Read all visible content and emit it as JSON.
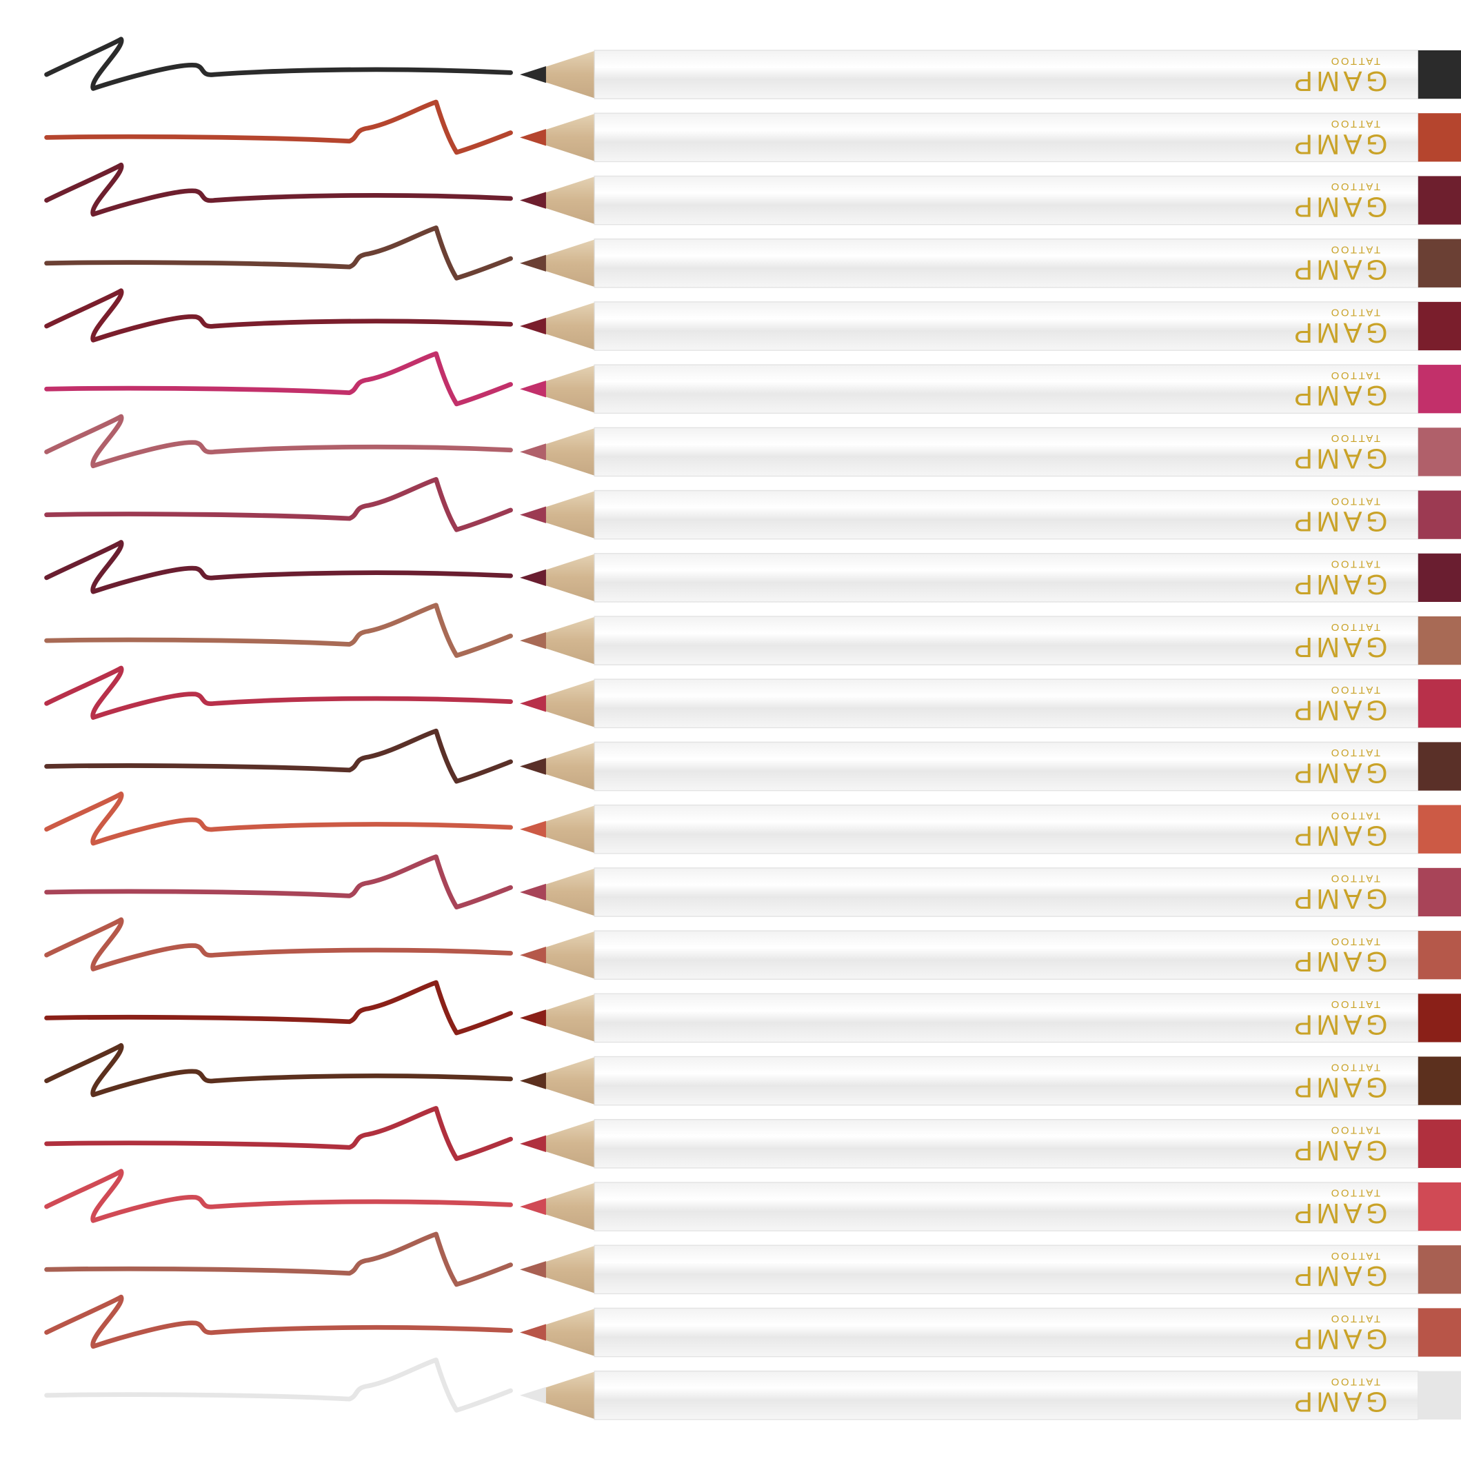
{
  "brand": {
    "name": "GAMP",
    "line": "TATTOO"
  },
  "pencils": [
    {
      "color": "#2b2b2b"
    },
    {
      "color": "#b5452e"
    },
    {
      "color": "#6e1f2e"
    },
    {
      "color": "#6b4034"
    },
    {
      "color": "#7a1e2c"
    },
    {
      "color": "#c2306a"
    },
    {
      "color": "#b0606a"
    },
    {
      "color": "#9c3a52"
    },
    {
      "color": "#6a1e30"
    },
    {
      "color": "#a86a55"
    },
    {
      "color": "#b8304a"
    },
    {
      "color": "#5a3028"
    },
    {
      "color": "#cc5a45"
    },
    {
      "color": "#a84458"
    },
    {
      "color": "#b5584a"
    },
    {
      "color": "#8a2018"
    },
    {
      "color": "#5c301e"
    },
    {
      "color": "#b0303e"
    },
    {
      "color": "#d04a55"
    },
    {
      "color": "#a86052"
    },
    {
      "color": "#b85548"
    },
    {
      "color": "#e6e6e6"
    }
  ]
}
